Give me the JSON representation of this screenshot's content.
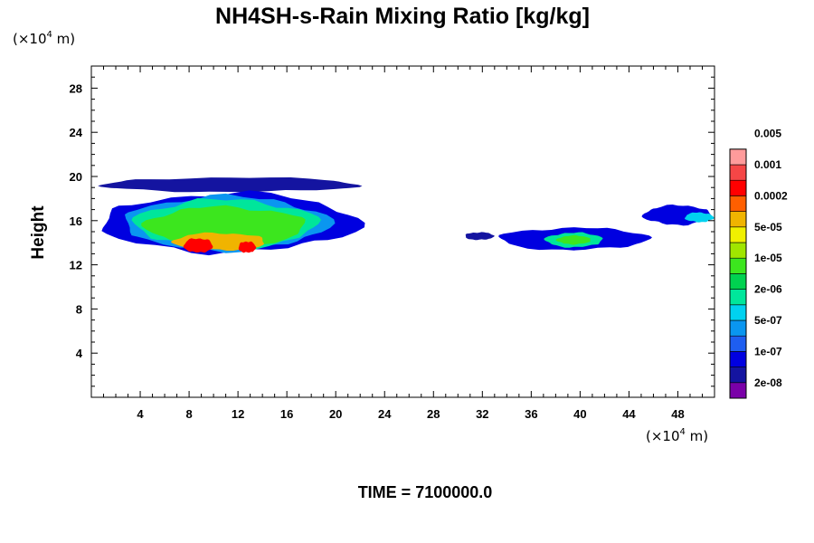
{
  "chart_data": {
    "type": "heatmap",
    "title": "NH4SH-s-Rain Mixing Ratio [kg/kg]",
    "ylabel": "Height",
    "x_unit": {
      "prefix": "(×10",
      "exp": "4",
      "suffix": " m)"
    },
    "y_unit": {
      "prefix": "(×10",
      "exp": "4",
      "suffix": " m)"
    },
    "time_label": "TIME = 7100000.0",
    "xlim": [
      0,
      51
    ],
    "ylim": [
      0,
      30
    ],
    "x_ticks": [
      4,
      8,
      12,
      16,
      20,
      24,
      28,
      32,
      36,
      40,
      44,
      48
    ],
    "y_ticks": [
      4,
      8,
      12,
      16,
      20,
      24,
      28
    ],
    "colorbar": {
      "colors": [
        "#7a00a8",
        "#1414a0",
        "#0000e0",
        "#1e5ef0",
        "#0a96f0",
        "#00d2f0",
        "#00e69b",
        "#00d250",
        "#3ce61e",
        "#a0e600",
        "#f0f000",
        "#f0b400",
        "#ff5f00",
        "#ff0000",
        "#f54646",
        "#ff9b9b"
      ],
      "tick_labels": [
        "2e-08",
        "1e-07",
        "5e-07",
        "2e-06",
        "1e-05",
        "5e-05",
        "0.0002",
        "0.001",
        "0.005"
      ]
    },
    "regions": [
      {
        "x": [
          0.2,
          22.5
        ],
        "y": [
          18.5,
          20.0
        ],
        "level": 1
      },
      {
        "x": [
          0.0,
          22.5
        ],
        "y": [
          12.8,
          18.8
        ],
        "level": 2
      },
      {
        "x": [
          2.0,
          20.0
        ],
        "y": [
          13.0,
          18.5
        ],
        "level": 4
      },
      {
        "x": [
          3.0,
          19.0
        ],
        "y": [
          13.2,
          18.2
        ],
        "level": 6
      },
      {
        "x": [
          4.0,
          18.0
        ],
        "y": [
          13.5,
          17.5
        ],
        "level": 8
      },
      {
        "x": [
          6.5,
          14.5
        ],
        "y": [
          13.2,
          15.0
        ],
        "level": 11
      },
      {
        "x": [
          7.5,
          10.0
        ],
        "y": [
          13.0,
          14.5
        ],
        "level": 13
      },
      {
        "x": [
          12.0,
          13.5
        ],
        "y": [
          13.0,
          14.2
        ],
        "level": 13
      },
      {
        "x": [
          30.5,
          33.0
        ],
        "y": [
          14.2,
          15.0
        ],
        "level": 1
      },
      {
        "x": [
          33.0,
          46.0
        ],
        "y": [
          13.2,
          15.5
        ],
        "level": 2
      },
      {
        "x": [
          37.0,
          42.0
        ],
        "y": [
          13.5,
          15.0
        ],
        "level": 6
      },
      {
        "x": [
          38.0,
          41.0
        ],
        "y": [
          13.8,
          14.7
        ],
        "level": 8
      },
      {
        "x": [
          45.0,
          51.0
        ],
        "y": [
          15.5,
          17.5
        ],
        "level": 2
      },
      {
        "x": [
          48.5,
          51.0
        ],
        "y": [
          15.8,
          16.8
        ],
        "level": 5
      }
    ]
  }
}
